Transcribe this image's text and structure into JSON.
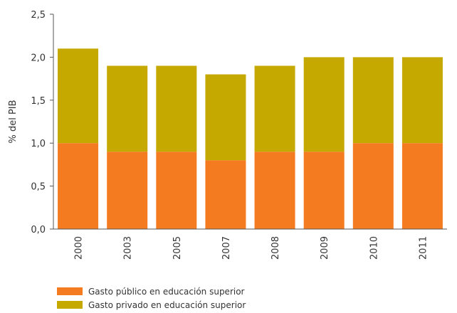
{
  "chart_data": {
    "type": "bar",
    "stacked": true,
    "categories": [
      "2000",
      "2003",
      "2005",
      "2007",
      "2008",
      "2009",
      "2010",
      "2011"
    ],
    "series": [
      {
        "name": "Gasto público en educación superior",
        "values": [
          1.0,
          0.9,
          0.9,
          0.8,
          0.9,
          0.9,
          1.0,
          1.0
        ],
        "color": "#F47B20"
      },
      {
        "name": "Gasto privado en educación superior",
        "values": [
          1.1,
          1.0,
          1.0,
          1.0,
          1.0,
          1.1,
          1.0,
          1.0
        ],
        "color": "#C5A800"
      }
    ],
    "ylabel": "% del PIB",
    "xlabel": "",
    "ylim": [
      0,
      2.5
    ],
    "yticks": [
      "0,0",
      "0,5",
      "1,0",
      "1,5",
      "2,0",
      "2,5"
    ],
    "grid": false,
    "legend_position": "bottom-left"
  }
}
